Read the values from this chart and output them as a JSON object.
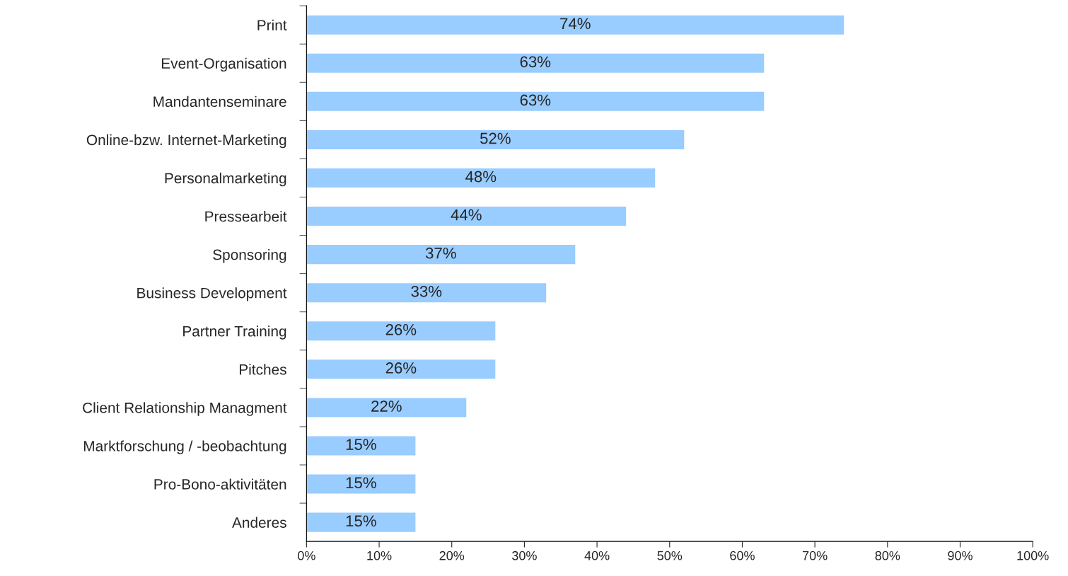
{
  "chart_data": {
    "type": "bar",
    "orientation": "horizontal",
    "categories": [
      "Print",
      "Event-Organisation",
      "Mandantenseminare",
      "Online-bzw. Internet-Marketing",
      "Personalmarketing",
      "Pressearbeit",
      "Sponsoring",
      "Business Development",
      "Partner Training",
      "Pitches",
      "Client Relationship Managment",
      "Marktforschung / -beobachtung",
      "Pro-Bono-aktivitäten",
      "Anderes"
    ],
    "values": [
      74,
      63,
      63,
      52,
      48,
      44,
      37,
      33,
      26,
      26,
      22,
      15,
      15,
      15
    ],
    "value_labels": [
      "74%",
      "63%",
      "63%",
      "52%",
      "48%",
      "44%",
      "37%",
      "33%",
      "26%",
      "26%",
      "22%",
      "15%",
      "15%",
      "15%"
    ],
    "color": "#99ccff",
    "xlim": [
      0,
      100
    ],
    "xticks": [
      {
        "value": 0,
        "label": "0%"
      },
      {
        "value": 10,
        "label": "10%"
      },
      {
        "value": 20,
        "label": "20%"
      },
      {
        "value": 30,
        "label": "30%"
      },
      {
        "value": 40,
        "label": "40%"
      },
      {
        "value": 50,
        "label": "50%"
      },
      {
        "value": 60,
        "label": "60%"
      },
      {
        "value": 70,
        "label": "70%"
      },
      {
        "value": 80,
        "label": "80%"
      },
      {
        "value": 90,
        "label": "90%"
      },
      {
        "value": 100,
        "label": "100%"
      }
    ],
    "grid": false,
    "legend": false
  }
}
